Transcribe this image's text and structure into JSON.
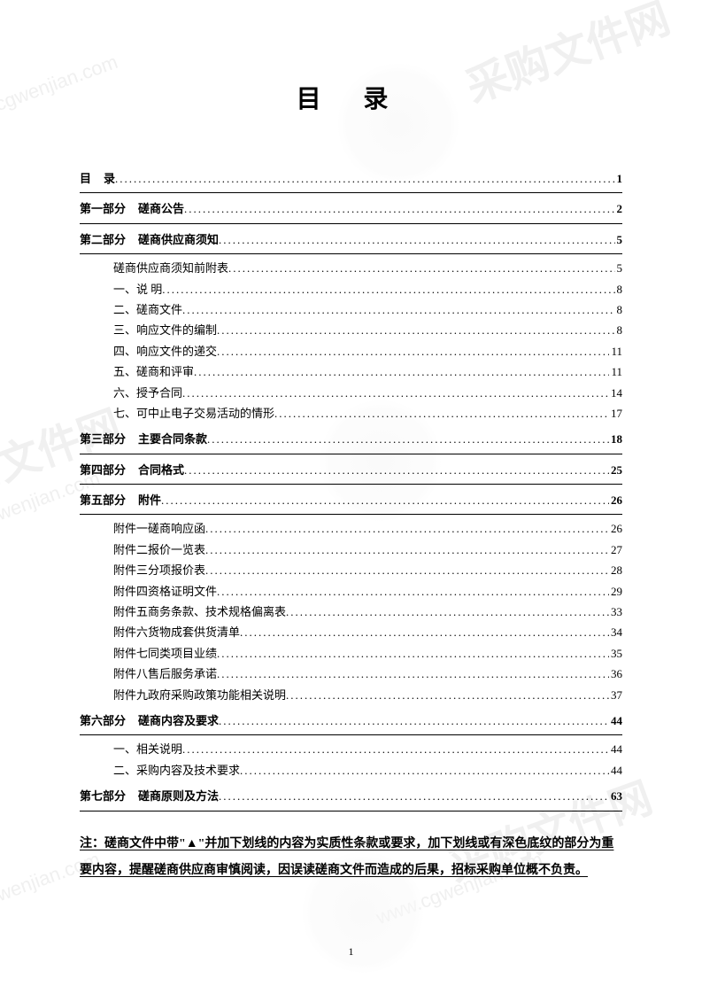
{
  "title": "目  录",
  "watermark_text_cn": "采购文件网",
  "watermark_text_url": "www.cgwenjian.com",
  "toc": {
    "top": {
      "label": "目",
      "text": "录",
      "page": "1"
    },
    "sections": [
      {
        "label": "第一部分",
        "text": "磋商公告",
        "page": "2",
        "items": []
      },
      {
        "label": "第二部分",
        "text": "磋商供应商须知",
        "page": "5",
        "items": [
          {
            "label": "",
            "text": "磋商供应商须知前附表",
            "page": "5"
          },
          {
            "label": "一、",
            "text": "说      明",
            "page": "8"
          },
          {
            "label": "二、",
            "text": "磋商文件",
            "page": "8"
          },
          {
            "label": "三、",
            "text": "响应文件的编制",
            "page": "8"
          },
          {
            "label": "四、",
            "text": "响应文件的递交",
            "page": "11"
          },
          {
            "label": "五、",
            "text": "磋商和评审",
            "page": "11"
          },
          {
            "label": "六、",
            "text": "授予合同",
            "page": "14"
          },
          {
            "label": "七、",
            "text": "可中止电子交易活动的情形",
            "page": "17"
          }
        ]
      },
      {
        "label": "第三部分",
        "text": "主要合同条款",
        "page": "18",
        "items": []
      },
      {
        "label": "第四部分",
        "text": "合同格式",
        "page": "25",
        "items": []
      },
      {
        "label": "第五部分",
        "text": "附件",
        "page": "26",
        "items": [
          {
            "label": "附件一",
            "text": "磋商响应函",
            "page": "26"
          },
          {
            "label": "附件二",
            "text": "报价一览表",
            "page": "27"
          },
          {
            "label": "附件三",
            "text": "分项报价表",
            "page": "28"
          },
          {
            "label": "附件四",
            "text": "资格证明文件",
            "page": "29"
          },
          {
            "label": "附件五",
            "text": "商务条款、技术规格偏离表",
            "page": "33"
          },
          {
            "label": "附件六",
            "text": "货物成套供货清单",
            "page": "34"
          },
          {
            "label": "附件七",
            "text": "同类项目业绩",
            "page": "35"
          },
          {
            "label": "附件八",
            "text": "售后服务承诺",
            "page": "36"
          },
          {
            "label": "附件九",
            "text": "政府采购政策功能相关说明",
            "page": "37"
          }
        ]
      },
      {
        "label": "第六部分",
        "text": "磋商内容及要求",
        "page": "44",
        "items": [
          {
            "label": "一、",
            "text": "相关说明",
            "page": "44"
          },
          {
            "label": "二、",
            "text": "采购内容及技术要求",
            "page": "44"
          }
        ]
      },
      {
        "label": "第七部分",
        "text": "磋商原则及方法",
        "page": "63",
        "items": []
      }
    ]
  },
  "note_prefix": "注：",
  "note": "磋商文件中带\"▲\"并加下划线的内容为实质性条款或要求，加下划线或有深色底纹的部分为重要内容，提醒磋商供应商审慎阅读，因误读磋商文件而造成的后果，招标采购单位概不负责。",
  "page_number": "1"
}
